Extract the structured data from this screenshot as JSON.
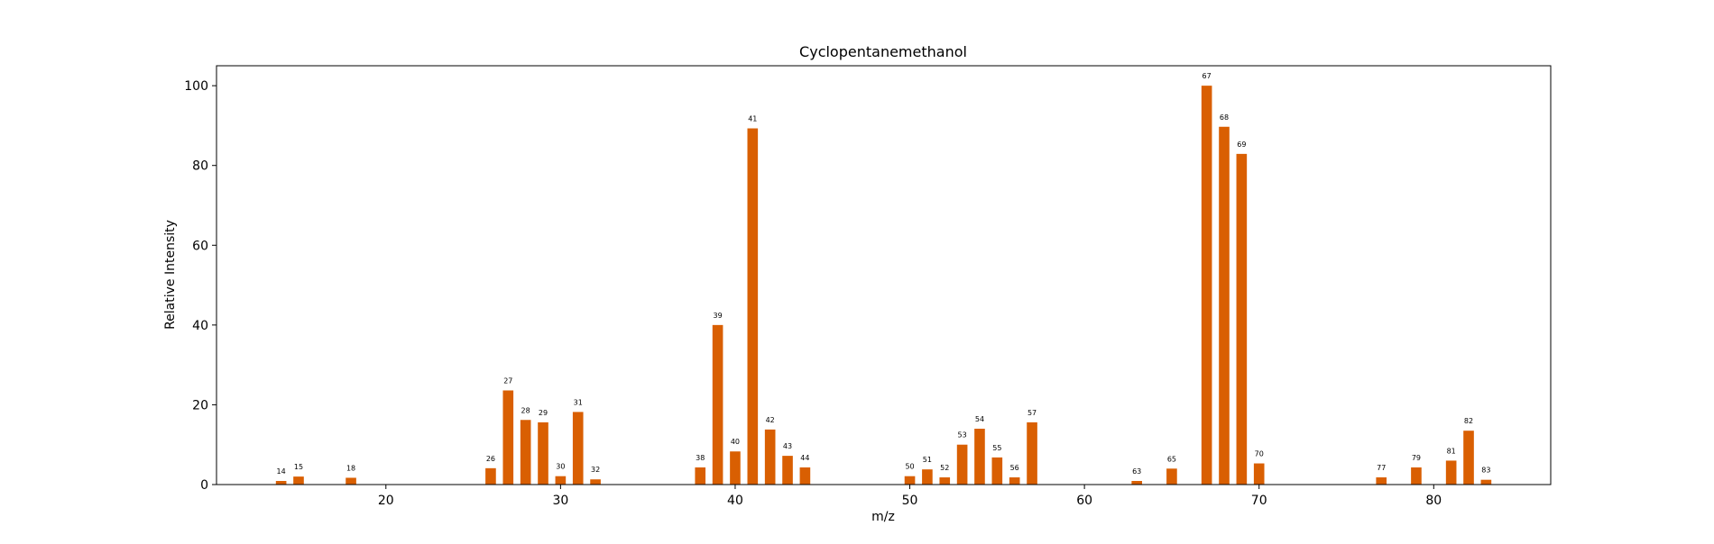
{
  "chart_data": {
    "type": "bar",
    "title": "Cyclopentanemethanol",
    "xlabel": "m/z",
    "ylabel": "Relative Intensity",
    "xlim": [
      10.3,
      86.7
    ],
    "ylim": [
      0,
      105
    ],
    "xticks": [
      20,
      30,
      40,
      50,
      60,
      70,
      80
    ],
    "yticks": [
      0,
      20,
      40,
      60,
      80,
      100
    ],
    "bar_color": "#d95f02",
    "bar_width": 0.6,
    "grid": false,
    "legend": "none",
    "x": [
      14,
      15,
      18,
      26,
      27,
      28,
      29,
      30,
      31,
      32,
      38,
      39,
      40,
      41,
      42,
      43,
      44,
      50,
      51,
      52,
      53,
      54,
      55,
      56,
      57,
      63,
      65,
      67,
      68,
      69,
      70,
      77,
      79,
      81,
      82,
      83
    ],
    "values": [
      0.9,
      2.0,
      1.7,
      4.1,
      23.6,
      16.2,
      15.6,
      2.1,
      18.2,
      1.3,
      4.3,
      40.0,
      8.3,
      89.3,
      13.8,
      7.2,
      4.3,
      2.1,
      3.8,
      1.8,
      10.0,
      14.0,
      6.8,
      1.8,
      15.6,
      0.9,
      4.0,
      100.0,
      89.7,
      82.9,
      5.3,
      1.8,
      4.3,
      6.0,
      13.5,
      1.2
    ]
  }
}
